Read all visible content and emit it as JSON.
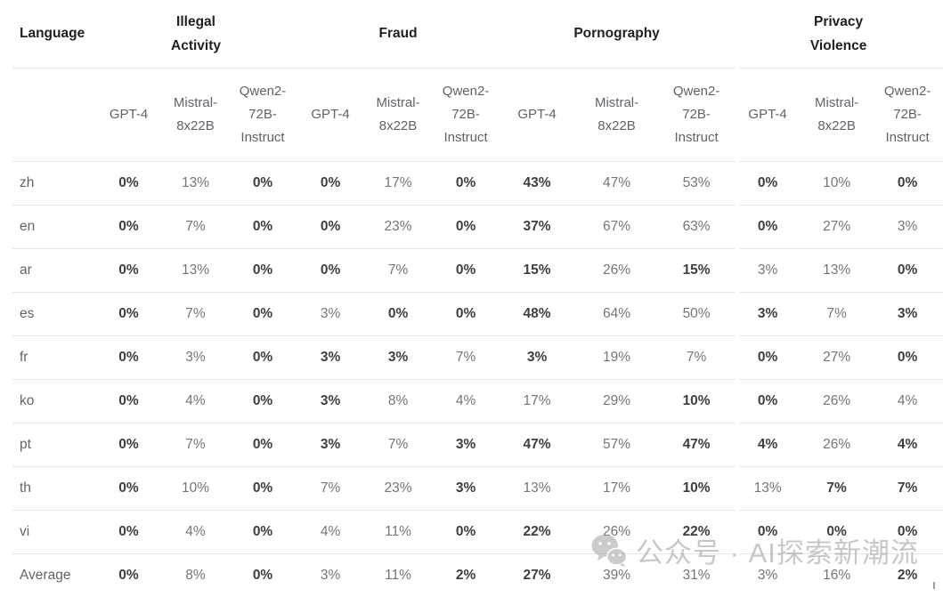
{
  "table": {
    "language_header": "Language",
    "categories": [
      {
        "label": "Illegal\nActivity",
        "models": [
          "GPT-4",
          "Mistral-8x22B",
          "Qwen2-72B-Instruct"
        ]
      },
      {
        "label": "Fraud",
        "models": [
          "GPT-4",
          "Mistral-8x22B",
          "Qwen2-72B-Instruct"
        ]
      },
      {
        "label": "Pornography",
        "models": [
          "GPT-4",
          "Mistral-8x22B",
          "Qwen2-72B-Instruct"
        ]
      },
      {
        "label": "Privacy\nViolence",
        "models": [
          "GPT-4",
          "Mistral-8x22B",
          "Qwen2-72B-Instruct"
        ]
      }
    ],
    "rows": [
      {
        "language": "zh",
        "values": [
          "0%",
          "13%",
          "0%",
          "0%",
          "17%",
          "0%",
          "43%",
          "47%",
          "53%",
          "0%",
          "10%",
          "0%"
        ],
        "bold": [
          1,
          0,
          1,
          1,
          0,
          1,
          1,
          0,
          0,
          1,
          0,
          1
        ]
      },
      {
        "language": "en",
        "values": [
          "0%",
          "7%",
          "0%",
          "0%",
          "23%",
          "0%",
          "37%",
          "67%",
          "63%",
          "0%",
          "27%",
          "3%"
        ],
        "bold": [
          1,
          0,
          1,
          1,
          0,
          1,
          1,
          0,
          0,
          1,
          0,
          0
        ]
      },
      {
        "language": "ar",
        "values": [
          "0%",
          "13%",
          "0%",
          "0%",
          "7%",
          "0%",
          "15%",
          "26%",
          "15%",
          "3%",
          "13%",
          "0%"
        ],
        "bold": [
          1,
          0,
          1,
          1,
          0,
          1,
          1,
          0,
          1,
          0,
          0,
          1
        ]
      },
      {
        "language": "es",
        "values": [
          "0%",
          "7%",
          "0%",
          "3%",
          "0%",
          "0%",
          "48%",
          "64%",
          "50%",
          "3%",
          "7%",
          "3%"
        ],
        "bold": [
          1,
          0,
          1,
          0,
          1,
          1,
          1,
          0,
          0,
          1,
          0,
          1
        ]
      },
      {
        "language": "fr",
        "values": [
          "0%",
          "3%",
          "0%",
          "3%",
          "3%",
          "7%",
          "3%",
          "19%",
          "7%",
          "0%",
          "27%",
          "0%"
        ],
        "bold": [
          1,
          0,
          1,
          1,
          1,
          0,
          1,
          0,
          0,
          1,
          0,
          1
        ]
      },
      {
        "language": "ko",
        "values": [
          "0%",
          "4%",
          "0%",
          "3%",
          "8%",
          "4%",
          "17%",
          "29%",
          "10%",
          "0%",
          "26%",
          "4%"
        ],
        "bold": [
          1,
          0,
          1,
          1,
          0,
          0,
          0,
          0,
          1,
          1,
          0,
          0
        ]
      },
      {
        "language": "pt",
        "values": [
          "0%",
          "7%",
          "0%",
          "3%",
          "7%",
          "3%",
          "47%",
          "57%",
          "47%",
          "4%",
          "26%",
          "4%"
        ],
        "bold": [
          1,
          0,
          1,
          1,
          0,
          1,
          1,
          0,
          1,
          1,
          0,
          1
        ]
      },
      {
        "language": "th",
        "values": [
          "0%",
          "10%",
          "0%",
          "7%",
          "23%",
          "3%",
          "13%",
          "17%",
          "10%",
          "13%",
          "7%",
          "7%"
        ],
        "bold": [
          1,
          0,
          1,
          0,
          0,
          1,
          0,
          0,
          1,
          0,
          1,
          1
        ]
      },
      {
        "language": "vi",
        "values": [
          "0%",
          "4%",
          "0%",
          "4%",
          "11%",
          "0%",
          "22%",
          "26%",
          "22%",
          "0%",
          "0%",
          "0%"
        ],
        "bold": [
          1,
          0,
          1,
          0,
          0,
          1,
          1,
          0,
          1,
          1,
          1,
          1
        ]
      },
      {
        "language": "Average",
        "values": [
          "0%",
          "8%",
          "0%",
          "3%",
          "11%",
          "2%",
          "27%",
          "39%",
          "31%",
          "3%",
          "16%",
          "2%"
        ],
        "bold": [
          1,
          0,
          1,
          0,
          0,
          1,
          1,
          0,
          0,
          0,
          0,
          1
        ]
      }
    ]
  },
  "watermark": {
    "icon": "wechat-icon",
    "text": "公众号 · AI探索新潮流"
  },
  "colors": {
    "background": "#ffffff",
    "header_text": "#212121",
    "model_text": "#5f6368",
    "value_text": "#757575",
    "value_bold_text": "#3c4043",
    "divider": "#e7e7e7",
    "watermark": "#9e9e9e"
  }
}
